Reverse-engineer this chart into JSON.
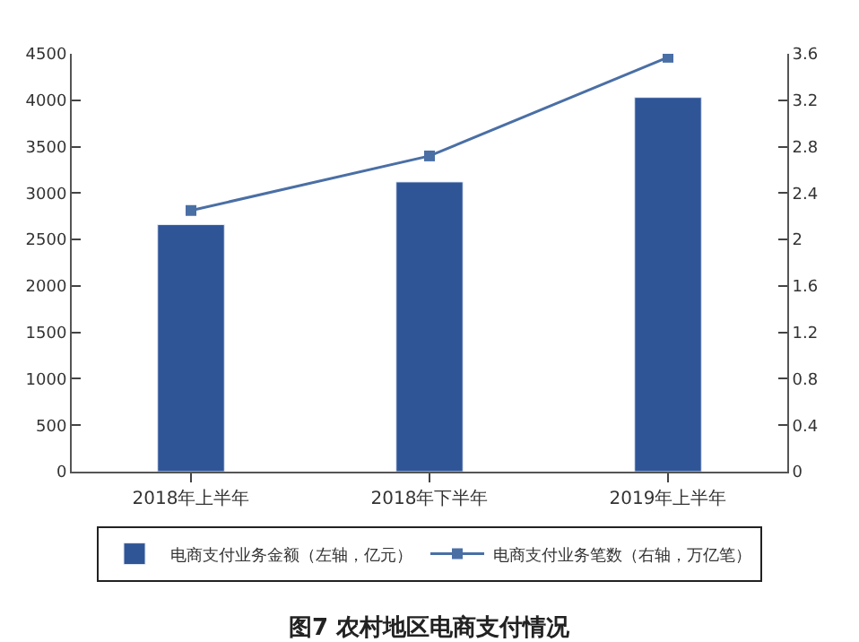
{
  "chart_data": {
    "type": "bar",
    "title": "图7 农村地区电商支付情况",
    "categories": [
      "2018年上半年",
      "2018年下半年",
      "2019年上半年"
    ],
    "series": [
      {
        "name": "电商支付业务金额（左轴，亿元）",
        "color": "#2f5597",
        "values": [
          2660,
          3120,
          4030
        ]
      },
      {
        "name": "电商支付业务笔数（右轴，万亿笔）",
        "type": "line",
        "axis": "y2",
        "color": "#4a6fa5",
        "marker": "square",
        "values": [
          2.25,
          2.72,
          3.57
        ]
      }
    ],
    "ylim": [
      0,
      4500
    ],
    "yticks": [
      0,
      500,
      1000,
      1500,
      2000,
      2500,
      3000,
      3500,
      4000,
      4500
    ],
    "y2lim": [
      0,
      3.6
    ],
    "y2ticks": [
      0,
      0.4,
      0.8,
      1.2,
      1.6,
      2,
      2.4,
      2.8,
      3.2,
      3.6
    ],
    "legend": "bottom"
  }
}
